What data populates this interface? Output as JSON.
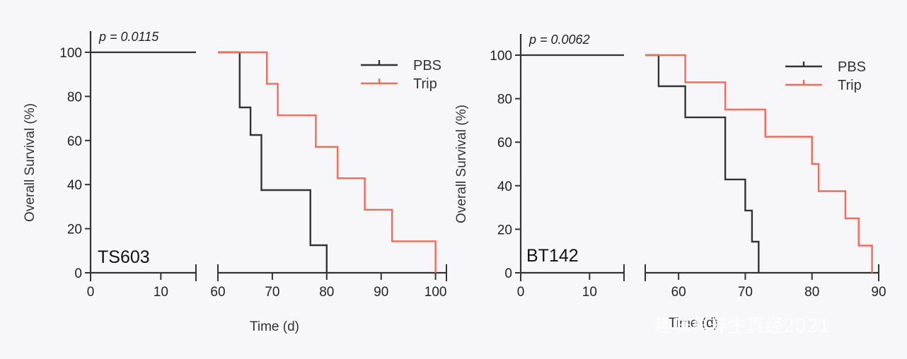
{
  "chart_data": [
    {
      "type": "line",
      "subtype": "kaplan-meier",
      "panel_label": "TS603",
      "p_value_text": "p = 0.0115",
      "xlabel": "Time (d)",
      "ylabel": "Overall Survival (%)",
      "ylim": [
        0,
        100
      ],
      "yticks": [
        0,
        20,
        40,
        60,
        80,
        100
      ],
      "x_segments": [
        {
          "range": [
            0,
            15
          ],
          "ticks": [
            0,
            10
          ]
        },
        {
          "range": [
            60,
            102
          ],
          "ticks": [
            60,
            70,
            80,
            90,
            100
          ]
        }
      ],
      "legend": [
        "PBS",
        "Trip"
      ],
      "series": [
        {
          "name": "PBS",
          "color": "#333333",
          "x": [
            60,
            64,
            66,
            68,
            77,
            80
          ],
          "y": [
            100,
            75,
            62.5,
            37.5,
            12.5,
            0
          ]
        },
        {
          "name": "Trip",
          "color": "#f26b5b",
          "x": [
            60,
            65,
            69,
            71,
            78,
            82,
            87,
            92,
            100
          ],
          "y": [
            100,
            100,
            85.7,
            71.4,
            57.1,
            42.9,
            28.6,
            14.3,
            0
          ]
        }
      ]
    },
    {
      "type": "line",
      "subtype": "kaplan-meier",
      "panel_label": "BT142",
      "p_value_text": "p = 0.0062",
      "xlabel": "Time (d)",
      "ylabel": "Overall Survival (%)",
      "ylim": [
        0,
        100
      ],
      "yticks": [
        0,
        20,
        40,
        60,
        80,
        100
      ],
      "x_segments": [
        {
          "range": [
            0,
            15
          ],
          "ticks": [
            0,
            10
          ]
        },
        {
          "range": [
            55,
            90
          ],
          "ticks": [
            60,
            70,
            80,
            90
          ]
        }
      ],
      "legend": [
        "PBS",
        "Trip"
      ],
      "series": [
        {
          "name": "PBS",
          "color": "#333333",
          "x": [
            55,
            57,
            61,
            67,
            70,
            71,
            72
          ],
          "y": [
            100,
            85.7,
            71.4,
            42.9,
            28.6,
            14.3,
            0
          ]
        },
        {
          "name": "Trip",
          "color": "#f26b5b",
          "x": [
            55,
            61,
            67,
            73,
            80,
            81,
            85,
            87,
            89
          ],
          "y": [
            100,
            87.5,
            75,
            62.5,
            50,
            37.5,
            25,
            12.5,
            0
          ]
        }
      ]
    }
  ],
  "watermark": "趣味科养生真经2021"
}
